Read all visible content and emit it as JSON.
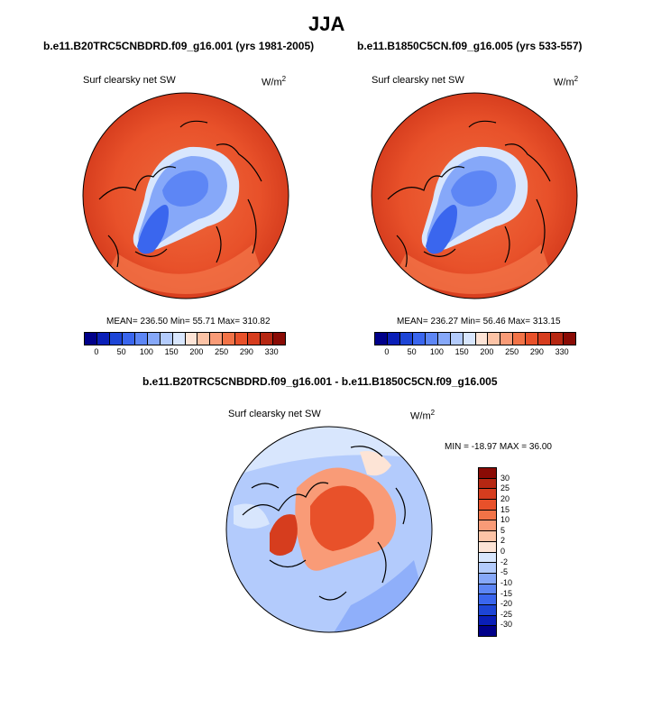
{
  "figure": {
    "title": "JJA",
    "units_label": "W/m",
    "units_exp": "2"
  },
  "panels": [
    {
      "case": "b.e11.B20TRC5CNBDRD.f09_g16.001 (yrs 1981-2005)",
      "variable": "Surf clearsky net SW",
      "stats": "MEAN= 236.50  Min=  55.71  Max= 310.82"
    },
    {
      "case": "b.e11.B1850C5CN.f09_g16.005 (yrs 533-557)",
      "variable": "Surf clearsky net SW",
      "stats": "MEAN= 236.27  Min=  56.46  Max= 313.15"
    }
  ],
  "diff": {
    "title": "b.e11.B20TRC5CNBDRD.f09_g16.001 - b.e11.B1850C5CN.f09_g16.005",
    "variable": "Surf clearsky net SW",
    "stats": "MIN = -18.97 MAX =  36.00"
  },
  "colorbar_main": {
    "labels": [
      "0",
      "50",
      "100",
      "150",
      "200",
      "250",
      "290",
      "330"
    ],
    "colors": [
      "#00008a",
      "#0a1fb8",
      "#1d45d6",
      "#3a66ee",
      "#5d86f5",
      "#86a8f9",
      "#b3cbfc",
      "#d8e6fd",
      "#fde4d6",
      "#fcc3a6",
      "#f99b77",
      "#f27347",
      "#e8512a",
      "#d63d1e",
      "#b62712",
      "#8a0b05"
    ]
  },
  "colorbar_diff": {
    "labels": [
      "30",
      "25",
      "20",
      "15",
      "10",
      "5",
      "2",
      "0",
      "-2",
      "-5",
      "-10",
      "-15",
      "-20",
      "-25",
      "-30"
    ],
    "colors": [
      "#8a0b05",
      "#b62712",
      "#d63d1e",
      "#e8512a",
      "#f27347",
      "#f99b77",
      "#fcc3a6",
      "#fde4d6",
      "#d8e6fd",
      "#b3cbfc",
      "#86a8f9",
      "#5d86f5",
      "#3a66ee",
      "#1d45d6",
      "#0a1fb8",
      "#00008a"
    ]
  }
}
